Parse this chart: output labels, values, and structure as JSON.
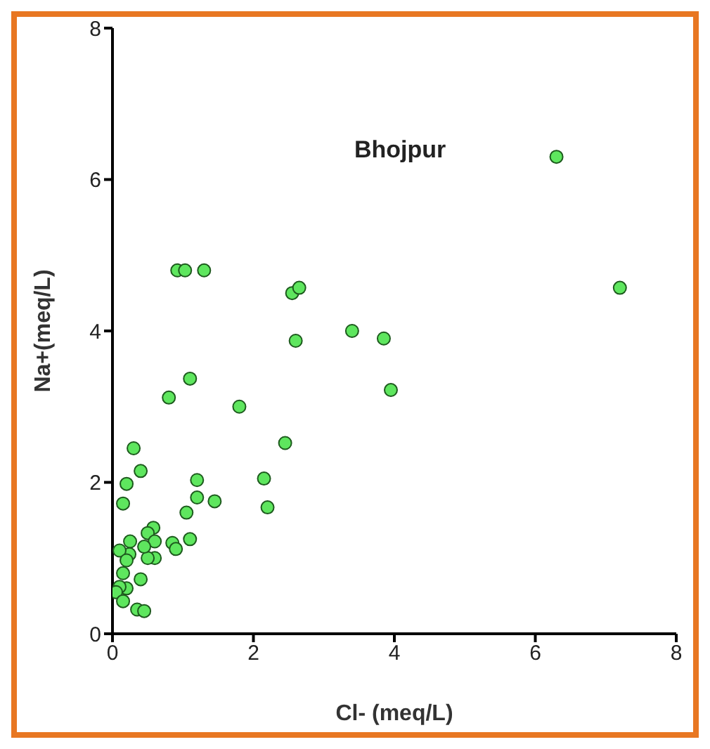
{
  "chart_data": {
    "type": "scatter",
    "title": "Bhojpur",
    "xlabel": "Cl- (meq/L)",
    "ylabel": "Na+(meq/L)",
    "xlim": [
      0,
      8
    ],
    "ylim": [
      0,
      8
    ],
    "xticks": [
      0,
      2,
      4,
      6,
      8
    ],
    "yticks": [
      0,
      2,
      4,
      6,
      8
    ],
    "grid": false,
    "legend": false,
    "marker": "circle",
    "series": [
      {
        "color": "#5ee65e",
        "x": [
          6.3,
          7.2,
          0.92,
          1.03,
          1.3,
          2.55,
          2.65,
          2.6,
          3.4,
          3.85,
          3.95,
          0.8,
          1.1,
          1.8,
          2.45,
          2.15,
          2.2,
          1.2,
          1.2,
          1.45,
          0.3,
          0.4,
          0.2,
          0.15,
          1.05,
          1.1,
          0.85,
          0.9,
          0.58,
          0.5,
          0.6,
          0.6,
          0.5,
          0.45,
          0.25,
          0.24,
          0.1,
          0.2,
          0.15,
          0.4,
          0.2,
          0.1,
          0.05,
          0.15,
          0.35,
          0.45
        ],
        "values": [
          6.3,
          4.57,
          4.8,
          4.8,
          4.8,
          4.5,
          4.57,
          3.87,
          4.0,
          3.9,
          3.22,
          3.12,
          3.37,
          3.0,
          2.52,
          2.05,
          1.67,
          2.03,
          1.8,
          1.75,
          2.45,
          2.15,
          1.98,
          1.72,
          1.6,
          1.25,
          1.2,
          1.12,
          1.4,
          1.33,
          1.22,
          1.0,
          1.0,
          1.15,
          1.22,
          1.05,
          1.1,
          0.97,
          0.8,
          0.72,
          0.6,
          0.62,
          0.55,
          0.43,
          0.32,
          0.3
        ]
      }
    ]
  }
}
